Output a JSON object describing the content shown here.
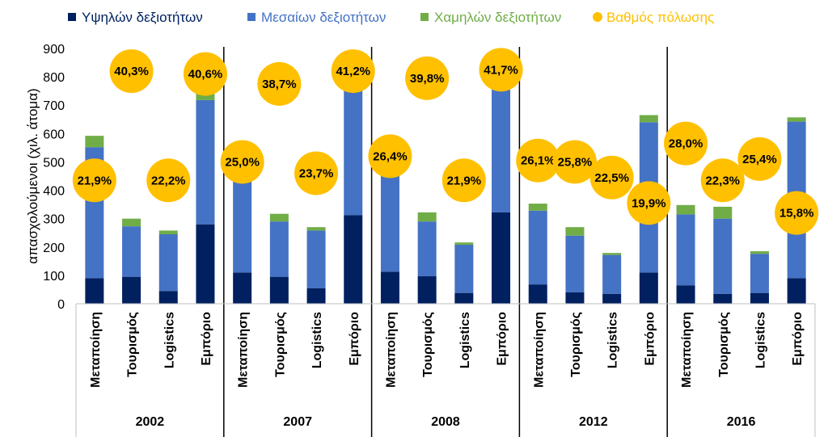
{
  "chart_data": {
    "type": "bar",
    "stacked": true,
    "ylabel": "απασχολούμενοι (χιλ. άτομα)",
    "ylim": [
      0,
      900
    ],
    "yticks": [
      0,
      100,
      200,
      300,
      400,
      500,
      600,
      700,
      800,
      900
    ],
    "grid": false,
    "legend_position": "top",
    "legend": [
      {
        "label": "Υψηλών δεξιοτήτων",
        "color": "#002060"
      },
      {
        "label": "Μεσαίων δεξιοτήτων",
        "color": "#4472C4"
      },
      {
        "label": "Χαμηλών δεξιοτήτων",
        "color": "#70AD47"
      },
      {
        "label": "Βαθμός πόλωσης",
        "color": "#FFC000"
      }
    ],
    "years": [
      "2002",
      "2007",
      "2008",
      "2012",
      "2016"
    ],
    "categories": [
      "Μεταποίηση",
      "Τουρισμός",
      "Logistics",
      "Εμπόριο"
    ],
    "series": [
      {
        "name": "Υψηλών δεξιοτήτων",
        "values": [
          [
            90,
            95,
            45,
            280
          ],
          [
            110,
            95,
            55,
            312
          ],
          [
            113,
            97,
            38,
            322
          ],
          [
            68,
            40,
            35,
            110
          ],
          [
            65,
            35,
            38,
            90
          ]
        ]
      },
      {
        "name": "Μεσαίων δεξιοτήτων",
        "values": [
          [
            462,
            178,
            200,
            438
          ],
          [
            415,
            195,
            203,
            478
          ],
          [
            397,
            193,
            170,
            478
          ],
          [
            260,
            200,
            137,
            530
          ],
          [
            250,
            265,
            138,
            552
          ]
        ]
      },
      {
        "name": "Χαμηλών δεξιοτήτων",
        "values": [
          [
            40,
            27,
            13,
            50
          ],
          [
            28,
            27,
            12,
            55
          ],
          [
            25,
            32,
            8,
            50
          ],
          [
            25,
            30,
            7,
            25
          ],
          [
            33,
            42,
            9,
            15
          ]
        ]
      }
    ],
    "polarization": {
      "name": "Βαθμός πόλωσης",
      "labels": [
        [
          "21,9%",
          "40,3%",
          "22,2%",
          "40,6%"
        ],
        [
          "25,0%",
          "38,7%",
          "23,7%",
          "41,2%"
        ],
        [
          "26,4%",
          "39,8%",
          "21,9%",
          "41,7%"
        ],
        [
          "26,1%",
          "25,8%",
          "22,5%",
          "19,9%"
        ],
        [
          "28,0%",
          "22,3%",
          "25,4%",
          "15,8%"
        ]
      ],
      "positions": [
        [
          435,
          820,
          435,
          810
        ],
        [
          500,
          775,
          460,
          820
        ],
        [
          520,
          795,
          435,
          825
        ],
        [
          505,
          500,
          445,
          355
        ],
        [
          565,
          435,
          510,
          320
        ]
      ]
    }
  }
}
